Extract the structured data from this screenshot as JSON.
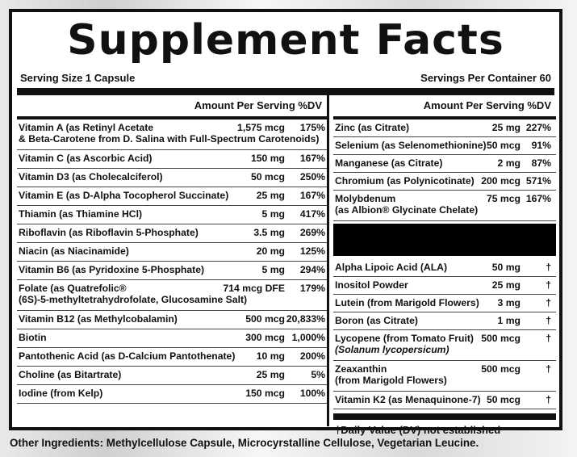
{
  "title": "Supplement Facts",
  "serving_size": "Serving Size 1 Capsule",
  "servings_per_container": "Servings Per Container 60",
  "header_left": "Amount Per Serving %DV",
  "header_right": "Amount Per Serving %DV",
  "left_rows": [
    {
      "name": "Vitamin A (as Retinyl Acetate",
      "name2": "& Beta-Carotene from D. Salina with Full-Spectrum Carotenoids)",
      "amount": "1,575 mcg",
      "dv": "175%"
    },
    {
      "name": "Vitamin C (as Ascorbic Acid)",
      "amount": "150 mg",
      "dv": "167%"
    },
    {
      "name": "Vitamin D3 (as Cholecalciferol)",
      "amount": "50 mcg",
      "dv": "250%"
    },
    {
      "name": "Vitamin E (as D-Alpha Tocopherol Succinate)",
      "amount": "25 mg",
      "dv": "167%"
    },
    {
      "name": "Thiamin (as Thiamine HCl)",
      "amount": "5 mg",
      "dv": "417%"
    },
    {
      "name": "Riboflavin (as Riboflavin 5-Phosphate)",
      "amount": "3.5 mg",
      "dv": "269%"
    },
    {
      "name": "Niacin (as Niacinamide)",
      "amount": "20 mg",
      "dv": "125%"
    },
    {
      "name": "Vitamin B6 (as Pyridoxine 5-Phosphate)",
      "amount": "5 mg",
      "dv": "294%"
    },
    {
      "name": "Folate (as Quatrefolic®",
      "name2": "(6S)-5-methyltetrahydrofolate, Glucosamine Salt)",
      "amount": "714 mcg DFE",
      "dv": "179%"
    },
    {
      "name": "Vitamin B12 (as Methylcobalamin)",
      "amount": "500 mcg",
      "dv": "20,833%"
    },
    {
      "name": "Biotin",
      "amount": "300 mcg",
      "dv": "1,000%"
    },
    {
      "name": "Pantothenic Acid (as D-Calcium Pantothenate)",
      "amount": "10 mg",
      "dv": "200%"
    },
    {
      "name": "Choline (as Bitartrate)",
      "amount": "25 mg",
      "dv": "5%"
    },
    {
      "name": "Iodine (from Kelp)",
      "amount": "150 mcg",
      "dv": "100%"
    }
  ],
  "right_rows_top": [
    {
      "name": "Zinc (as Citrate)",
      "amount": "25 mg",
      "dv": "227%"
    },
    {
      "name": "Selenium (as Selenomethionine)",
      "amount": "50 mcg",
      "dv": "91%"
    },
    {
      "name": "Manganese (as Citrate)",
      "amount": "2 mg",
      "dv": "87%"
    },
    {
      "name": "Chromium (as Polynicotinate)",
      "amount": "200 mcg",
      "dv": "571%"
    },
    {
      "name": "Molybdenum",
      "name2": "(as Albion® Glycinate Chelate)",
      "amount": "75 mcg",
      "dv": "167%"
    }
  ],
  "right_rows_bottom": [
    {
      "name": "Alpha Lipoic Acid (ALA)",
      "amount": "50 mg",
      "dv": "†"
    },
    {
      "name": "Inositol Powder",
      "amount": "25 mg",
      "dv": "†"
    },
    {
      "name": "Lutein (from Marigold Flowers)",
      "amount": "3 mg",
      "dv": "†"
    },
    {
      "name": "Boron (as Citrate)",
      "amount": "1 mg",
      "dv": "†"
    },
    {
      "name": "Lycopene (from Tomato Fruit)",
      "name2": "(Solanum lycopersicum)",
      "amount": "500 mcg",
      "dv": "†"
    },
    {
      "name": "Zeaxanthin",
      "name2": "(from Marigold Flowers)",
      "amount": "500 mcg",
      "dv": "†"
    },
    {
      "name": "Vitamin K2 (as Menaquinone-7)",
      "amount": "50 mcg",
      "dv": "†"
    }
  ],
  "dv_note": "†Daily Value (DV) not established",
  "other_ingredients": "Other Ingredients: Methylcellulose Capsule, Microcyrstalline Cellulose, Vegetarian Leucine."
}
